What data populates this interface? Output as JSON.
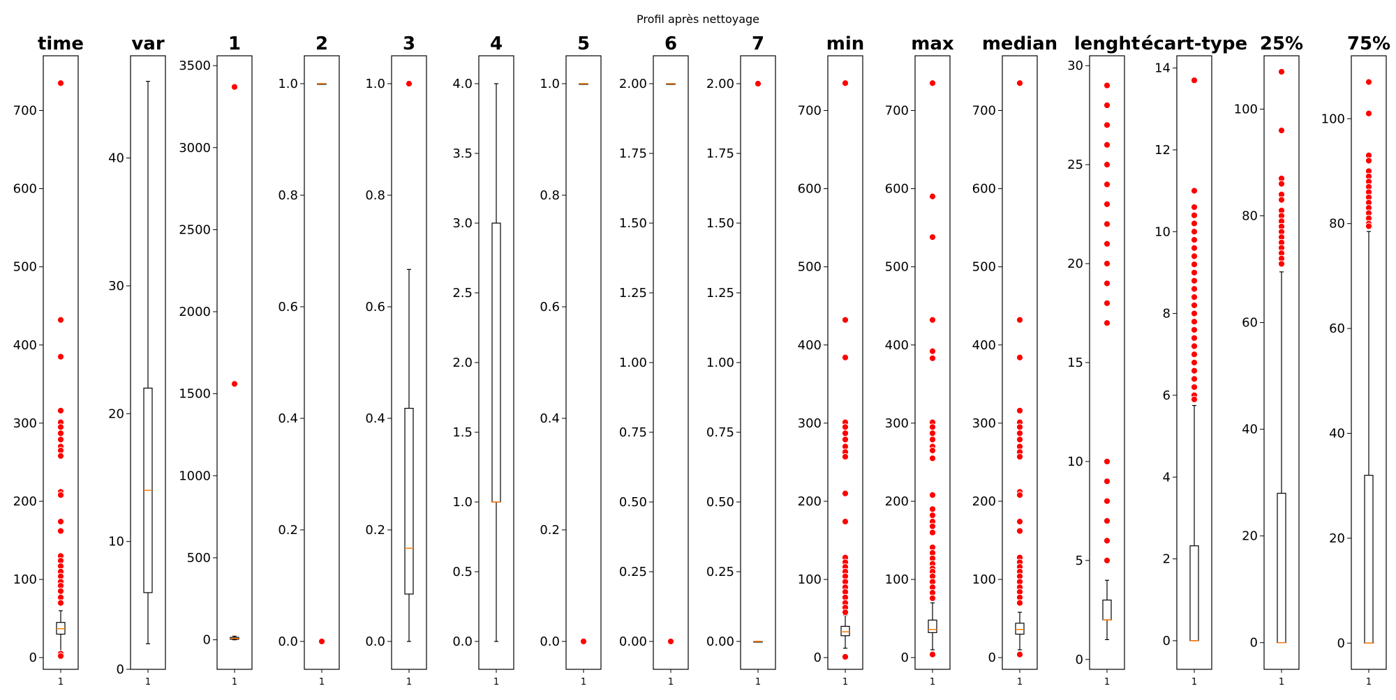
{
  "figure": {
    "suptitle": "Profil après nettoyage",
    "colors": {
      "outlier": "#ff0000",
      "median": "#ff7f0e",
      "box": "#000000",
      "background": "#ffffff"
    }
  },
  "chart_data": [
    {
      "type": "boxplot",
      "title": "time",
      "xtick": "1",
      "ylim": [
        -15,
        770
      ],
      "yticks": [
        0,
        100,
        200,
        300,
        400,
        500,
        600,
        700
      ],
      "ytick_labels": [
        "0",
        "100",
        "200",
        "300",
        "400",
        "500",
        "600",
        "700"
      ],
      "box": {
        "whisker_low": 8,
        "q1": 30,
        "median": 37,
        "q3": 45,
        "whisker_high": 60
      },
      "outliers": [
        735,
        432,
        385,
        316,
        301,
        295,
        287,
        279,
        270,
        265,
        258,
        212,
        208,
        174,
        162,
        130,
        124,
        117,
        110,
        104,
        97,
        92,
        85,
        77,
        70,
        5,
        2
      ]
    },
    {
      "type": "boxplot",
      "title": "var",
      "xtick": "1",
      "ylim": [
        0,
        48
      ],
      "yticks": [
        0,
        10,
        20,
        30,
        40
      ],
      "ytick_labels": [
        "0",
        "10",
        "20",
        "30",
        "40"
      ],
      "box": {
        "whisker_low": 2,
        "q1": 6,
        "median": 14,
        "q3": 22,
        "whisker_high": 46
      },
      "outliers": []
    },
    {
      "type": "boxplot",
      "title": "1",
      "xtick": "1",
      "ylim": [
        -180,
        3560
      ],
      "yticks": [
        0,
        500,
        1000,
        1500,
        2000,
        2500,
        3000,
        3500
      ],
      "ytick_labels": [
        "0",
        "500",
        "1000",
        "1500",
        "2000",
        "2500",
        "3000",
        "3500"
      ],
      "box": {
        "whisker_low": 0,
        "q1": 3,
        "median": 8,
        "q3": 15,
        "whisker_high": 22
      },
      "outliers": [
        3370,
        1560
      ]
    },
    {
      "type": "boxplot",
      "title": "2",
      "xtick": "1",
      "ylim": [
        -0.05,
        1.05
      ],
      "yticks": [
        0.0,
        0.2,
        0.4,
        0.6,
        0.8,
        1.0
      ],
      "ytick_labels": [
        "0.0",
        "0.2",
        "0.4",
        "0.6",
        "0.8",
        "1.0"
      ],
      "box": {
        "whisker_low": 1.0,
        "q1": 1.0,
        "median": 1.0,
        "q3": 1.0,
        "whisker_high": 1.0
      },
      "outliers": [
        0.0
      ]
    },
    {
      "type": "boxplot",
      "title": "3",
      "xtick": "1",
      "ylim": [
        -0.05,
        1.05
      ],
      "yticks": [
        0.0,
        0.2,
        0.4,
        0.6,
        0.8,
        1.0
      ],
      "ytick_labels": [
        "0.0",
        "0.2",
        "0.4",
        "0.6",
        "0.8",
        "1.0"
      ],
      "box": {
        "whisker_low": 0.0,
        "q1": 0.085,
        "median": 0.167,
        "q3": 0.418,
        "whisker_high": 0.667
      },
      "outliers": [
        1.0
      ]
    },
    {
      "type": "boxplot",
      "title": "4",
      "xtick": "1",
      "ylim": [
        -0.2,
        4.2
      ],
      "yticks": [
        0.0,
        0.5,
        1.0,
        1.5,
        2.0,
        2.5,
        3.0,
        3.5,
        4.0
      ],
      "ytick_labels": [
        "0.0",
        "0.5",
        "1.0",
        "1.5",
        "2.0",
        "2.5",
        "3.0",
        "3.5",
        "4.0"
      ],
      "box": {
        "whisker_low": 0.0,
        "q1": 1.0,
        "median": 1.0,
        "q3": 3.0,
        "whisker_high": 4.0
      },
      "outliers": []
    },
    {
      "type": "boxplot",
      "title": "5",
      "xtick": "1",
      "ylim": [
        -0.05,
        1.05
      ],
      "yticks": [
        0.0,
        0.2,
        0.4,
        0.6,
        0.8,
        1.0
      ],
      "ytick_labels": [
        "0.0",
        "0.2",
        "0.4",
        "0.6",
        "0.8",
        "1.0"
      ],
      "box": {
        "whisker_low": 1.0,
        "q1": 1.0,
        "median": 1.0,
        "q3": 1.0,
        "whisker_high": 1.0
      },
      "outliers": [
        0.0
      ]
    },
    {
      "type": "boxplot",
      "title": "6",
      "xtick": "1",
      "ylim": [
        -0.1,
        2.1
      ],
      "yticks": [
        0.0,
        0.25,
        0.5,
        0.75,
        1.0,
        1.25,
        1.5,
        1.75,
        2.0
      ],
      "ytick_labels": [
        "0.00",
        "0.25",
        "0.50",
        "0.75",
        "1.00",
        "1.25",
        "1.50",
        "1.75",
        "2.00"
      ],
      "box": {
        "whisker_low": 2.0,
        "q1": 2.0,
        "median": 2.0,
        "q3": 2.0,
        "whisker_high": 2.0
      },
      "outliers": [
        0.0
      ]
    },
    {
      "type": "boxplot",
      "title": "7",
      "xtick": "1",
      "ylim": [
        -0.1,
        2.1
      ],
      "yticks": [
        0.0,
        0.25,
        0.5,
        0.75,
        1.0,
        1.25,
        1.5,
        1.75,
        2.0
      ],
      "ytick_labels": [
        "0.00",
        "0.25",
        "0.50",
        "0.75",
        "1.00",
        "1.25",
        "1.50",
        "1.75",
        "2.00"
      ],
      "box": {
        "whisker_low": 0.0,
        "q1": 0.0,
        "median": 0.0,
        "q3": 0.0,
        "whisker_high": 0.0
      },
      "outliers": [
        2.0
      ]
    },
    {
      "type": "boxplot",
      "title": "min",
      "xtick": "1",
      "ylim": [
        -15,
        770
      ],
      "yticks": [
        0,
        100,
        200,
        300,
        400,
        500,
        600,
        700
      ],
      "ytick_labels": [
        "0",
        "100",
        "200",
        "300",
        "400",
        "500",
        "600",
        "700"
      ],
      "box": {
        "whisker_low": 12,
        "q1": 28,
        "median": 33,
        "q3": 40,
        "whisker_high": 54
      },
      "outliers": [
        735,
        432,
        384,
        301,
        295,
        287,
        279,
        270,
        263,
        257,
        210,
        174,
        128,
        122,
        116,
        110,
        104,
        97,
        90,
        84,
        77,
        70,
        64,
        58,
        1
      ]
    },
    {
      "type": "boxplot",
      "title": "max",
      "xtick": "1",
      "ylim": [
        -15,
        770
      ],
      "yticks": [
        0,
        100,
        200,
        300,
        400,
        500,
        600,
        700
      ],
      "ytick_labels": [
        "0",
        "100",
        "200",
        "300",
        "400",
        "500",
        "600",
        "700"
      ],
      "box": {
        "whisker_low": 10,
        "q1": 32,
        "median": 36,
        "q3": 48,
        "whisker_high": 70
      },
      "outliers": [
        735,
        590,
        538,
        432,
        392,
        383,
        301,
        295,
        287,
        279,
        270,
        265,
        255,
        208,
        190,
        182,
        174,
        168,
        160,
        141,
        134,
        127,
        120,
        114,
        110,
        104,
        97,
        90,
        83,
        76,
        4
      ]
    },
    {
      "type": "boxplot",
      "title": "median",
      "xtick": "1",
      "ylim": [
        -15,
        770
      ],
      "yticks": [
        0,
        100,
        200,
        300,
        400,
        500,
        600,
        700
      ],
      "ytick_labels": [
        "0",
        "100",
        "200",
        "300",
        "400",
        "500",
        "600",
        "700"
      ],
      "box": {
        "whisker_low": 10,
        "q1": 30,
        "median": 36,
        "q3": 44,
        "whisker_high": 58
      },
      "outliers": [
        735,
        432,
        384,
        316,
        301,
        295,
        287,
        279,
        270,
        263,
        257,
        212,
        208,
        174,
        162,
        128,
        122,
        116,
        110,
        104,
        97,
        90,
        84,
        77,
        70,
        4
      ]
    },
    {
      "type": "boxplot",
      "title": "lenght",
      "xtick": "1",
      "ylim": [
        -0.5,
        30.5
      ],
      "yticks": [
        0,
        5,
        10,
        15,
        20,
        25,
        30
      ],
      "ytick_labels": [
        "0",
        "5",
        "10",
        "15",
        "20",
        "25",
        "30"
      ],
      "box": {
        "whisker_low": 1,
        "q1": 2,
        "median": 2,
        "q3": 3,
        "whisker_high": 4
      },
      "outliers": [
        29,
        28,
        27,
        26,
        25,
        24,
        23,
        22,
        21,
        20,
        19,
        18,
        17,
        10,
        9,
        8,
        7,
        6,
        5
      ]
    },
    {
      "type": "boxplot",
      "title": "écart-type",
      "xtick": "1",
      "ylim": [
        -0.7,
        14.3
      ],
      "yticks": [
        0,
        2,
        4,
        6,
        8,
        10,
        12,
        14
      ],
      "ytick_labels": [
        "0",
        "2",
        "4",
        "6",
        "8",
        "10",
        "12",
        "14"
      ],
      "box": {
        "whisker_low": 0.0,
        "q1": 0.0,
        "median": 0.0,
        "q3": 2.32,
        "whisker_high": 5.75
      },
      "outliers": [
        13.7,
        11.0,
        10.6,
        10.4,
        10.2,
        10.0,
        9.8,
        9.6,
        9.4,
        9.2,
        9.0,
        8.8,
        8.6,
        8.4,
        8.2,
        8.0,
        7.8,
        7.6,
        7.4,
        7.2,
        7.0,
        6.8,
        6.6,
        6.4,
        6.2,
        6.0,
        5.9
      ]
    },
    {
      "type": "boxplot",
      "title": "25%",
      "xtick": "1",
      "ylim": [
        -5,
        110
      ],
      "yticks": [
        0,
        20,
        40,
        60,
        80,
        100
      ],
      "ytick_labels": [
        "0",
        "20",
        "40",
        "60",
        "80",
        "100"
      ],
      "box": {
        "whisker_low": 0,
        "q1": 0,
        "median": 0,
        "q3": 28,
        "whisker_high": 69.5
      },
      "outliers": [
        107,
        96,
        87,
        86,
        84,
        83,
        81,
        80,
        79,
        78,
        77,
        76,
        75,
        74,
        73,
        72,
        71
      ]
    },
    {
      "type": "boxplot",
      "title": "75%",
      "xtick": "1",
      "ylim": [
        -5,
        112
      ],
      "yticks": [
        0,
        20,
        40,
        60,
        80,
        100
      ],
      "ytick_labels": [
        "0",
        "20",
        "40",
        "60",
        "80",
        "100"
      ],
      "box": {
        "whisker_low": 0,
        "q1": 0,
        "median": 0,
        "q3": 32,
        "whisker_high": 78.5
      },
      "outliers": [
        107,
        101,
        93,
        92,
        90,
        89,
        88,
        87,
        86,
        85,
        84,
        83,
        82,
        81,
        80,
        79.5
      ]
    }
  ]
}
